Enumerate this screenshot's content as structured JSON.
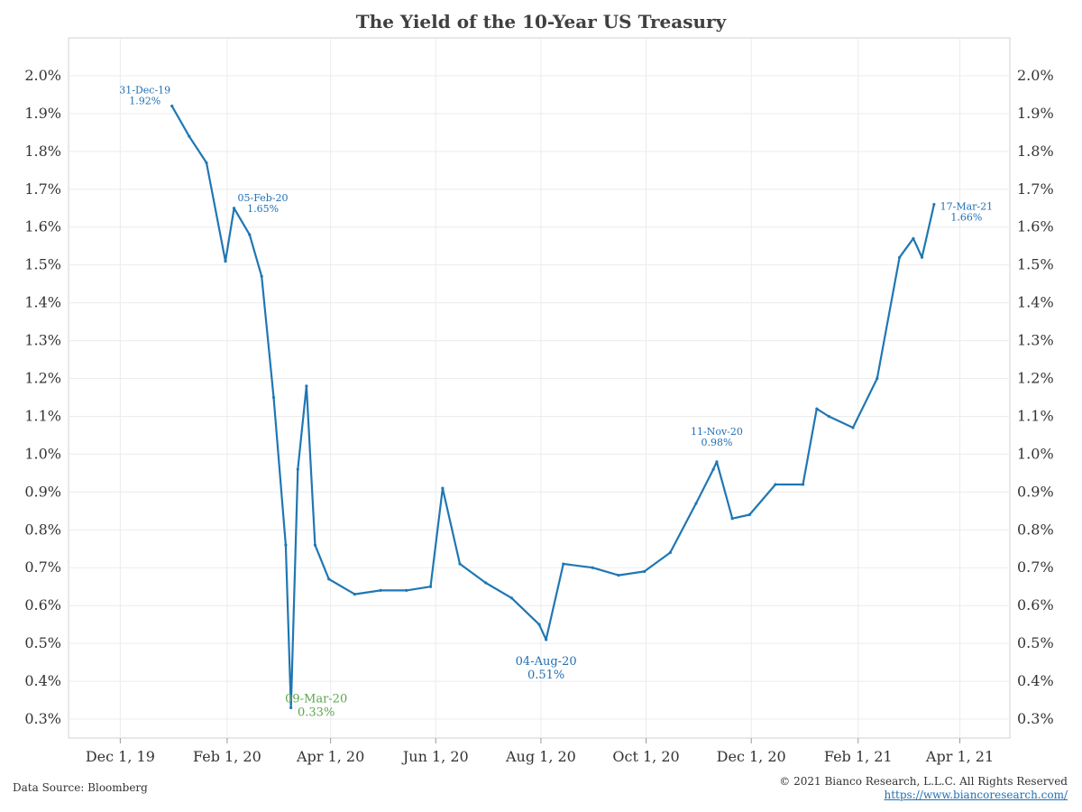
{
  "chart_data": {
    "type": "line",
    "title": "The Yield of the 10-Year US Treasury",
    "ylim": [
      0.25,
      2.1
    ],
    "y_ticks": [
      "0.3%",
      "0.4%",
      "0.5%",
      "0.6%",
      "0.7%",
      "0.8%",
      "0.9%",
      "1.0%",
      "1.1%",
      "1.2%",
      "1.3%",
      "1.4%",
      "1.5%",
      "1.6%",
      "1.7%",
      "1.8%",
      "1.9%",
      "2.0%"
    ],
    "x_ticks": [
      {
        "label": "Dec 1, 19",
        "date": "2019-12-01"
      },
      {
        "label": "Feb 1, 20",
        "date": "2020-02-01"
      },
      {
        "label": "Apr 1, 20",
        "date": "2020-04-01"
      },
      {
        "label": "Jun 1, 20",
        "date": "2020-06-01"
      },
      {
        "label": "Aug 1, 20",
        "date": "2020-08-01"
      },
      {
        "label": "Oct 1, 20",
        "date": "2020-10-01"
      },
      {
        "label": "Dec 1, 20",
        "date": "2020-12-01"
      },
      {
        "label": "Feb 1, 21",
        "date": "2021-02-01"
      },
      {
        "label": "Apr 1, 21",
        "date": "2021-04-01"
      }
    ],
    "xlim": [
      "2019-11-01",
      "2021-04-30"
    ],
    "grid": true,
    "series": [
      {
        "color": "#1f77b4",
        "x": [
          "2019-12-31",
          "2020-01-10",
          "2020-01-20",
          "2020-01-31",
          "2020-02-05",
          "2020-02-14",
          "2020-02-21",
          "2020-02-28",
          "2020-03-06",
          "2020-03-09",
          "2020-03-13",
          "2020-03-18",
          "2020-03-23",
          "2020-03-31",
          "2020-04-15",
          "2020-04-30",
          "2020-05-15",
          "2020-05-29",
          "2020-06-05",
          "2020-06-15",
          "2020-06-30",
          "2020-07-15",
          "2020-07-31",
          "2020-08-04",
          "2020-08-14",
          "2020-08-31",
          "2020-09-15",
          "2020-09-30",
          "2020-10-15",
          "2020-10-30",
          "2020-11-09",
          "2020-11-11",
          "2020-11-20",
          "2020-11-30",
          "2020-12-15",
          "2020-12-31",
          "2021-01-08",
          "2021-01-15",
          "2021-01-29",
          "2021-02-12",
          "2021-02-25",
          "2021-03-05",
          "2021-03-10",
          "2021-03-17"
        ],
        "values": [
          1.92,
          1.84,
          1.77,
          1.51,
          1.65,
          1.58,
          1.47,
          1.15,
          0.76,
          0.33,
          0.96,
          1.18,
          0.76,
          0.67,
          0.63,
          0.64,
          0.64,
          0.65,
          0.91,
          0.71,
          0.66,
          0.62,
          0.55,
          0.51,
          0.71,
          0.7,
          0.68,
          0.69,
          0.74,
          0.87,
          0.96,
          0.98,
          0.83,
          0.84,
          0.92,
          0.92,
          1.12,
          1.1,
          1.07,
          1.2,
          1.52,
          1.57,
          1.52,
          1.66
        ]
      }
    ],
    "annotations": [
      {
        "date": "2019-12-31",
        "value": 1.92,
        "label": "31-Dec-19",
        "sub": "1.92%",
        "color": "#1f6fb5"
      },
      {
        "date": "2020-02-05",
        "value": 1.65,
        "label": "05-Feb-20",
        "sub": "1.65%",
        "color": "#1f6fb5"
      },
      {
        "date": "2020-03-09",
        "value": 0.33,
        "label": "09-Mar-20",
        "sub": "0.33%",
        "color": "#5aa64c"
      },
      {
        "date": "2020-08-04",
        "value": 0.51,
        "label": "04-Aug-20",
        "sub": "0.51%",
        "color": "#1f6fb5"
      },
      {
        "date": "2020-11-11",
        "value": 0.98,
        "label": "11-Nov-20",
        "sub": "0.98%",
        "color": "#1f6fb5"
      },
      {
        "date": "2021-03-17",
        "value": 1.66,
        "label": "17-Mar-21",
        "sub": "1.66%",
        "color": "#1f6fb5"
      }
    ]
  },
  "footer": {
    "source": "Data Source: Bloomberg",
    "copyright": "© 2021 Bianco Research, L.L.C. All Rights Reserved",
    "url": "https://www.biancoresearch.com/"
  }
}
